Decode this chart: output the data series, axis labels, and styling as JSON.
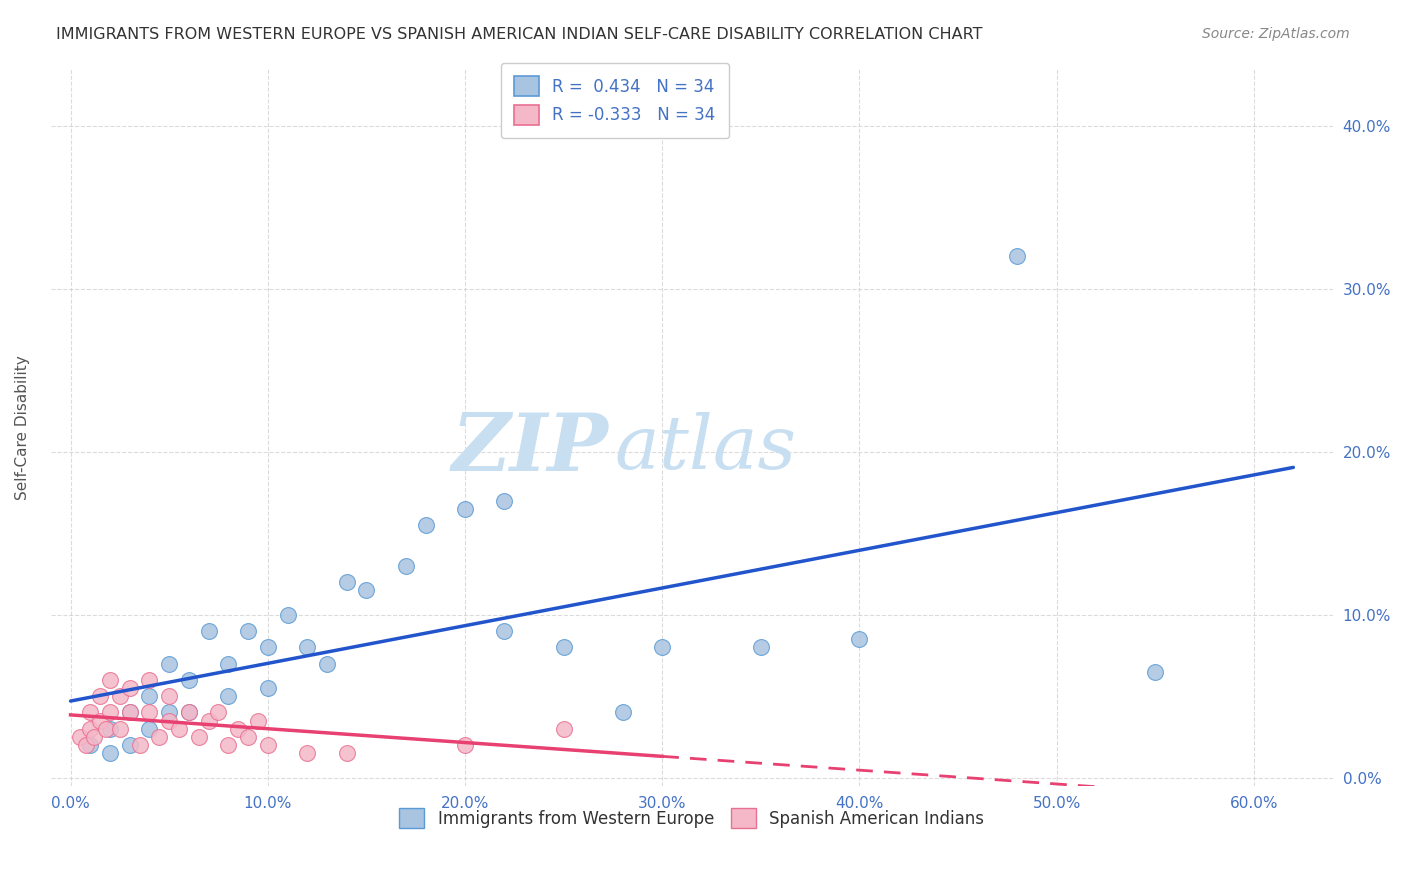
{
  "title": "IMMIGRANTS FROM WESTERN EUROPE VS SPANISH AMERICAN INDIAN SELF-CARE DISABILITY CORRELATION CHART",
  "source": "Source: ZipAtlas.com",
  "xlabel_vals": [
    0.0,
    0.1,
    0.2,
    0.3,
    0.4,
    0.5,
    0.6
  ],
  "ylabel": "Self-Care Disability",
  "ylabel_vals_right": [
    0.0,
    0.1,
    0.2,
    0.3,
    0.4
  ],
  "r_blue": 0.434,
  "n_blue": 34,
  "r_pink": -0.333,
  "n_pink": 34,
  "blue_scatter_x": [
    0.01,
    0.02,
    0.02,
    0.03,
    0.03,
    0.04,
    0.04,
    0.05,
    0.05,
    0.06,
    0.06,
    0.07,
    0.08,
    0.08,
    0.09,
    0.1,
    0.1,
    0.11,
    0.12,
    0.13,
    0.14,
    0.15,
    0.17,
    0.18,
    0.2,
    0.22,
    0.22,
    0.25,
    0.28,
    0.3,
    0.35,
    0.4,
    0.48,
    0.55
  ],
  "blue_scatter_y": [
    0.02,
    0.015,
    0.03,
    0.02,
    0.04,
    0.03,
    0.05,
    0.04,
    0.07,
    0.04,
    0.06,
    0.09,
    0.05,
    0.07,
    0.09,
    0.055,
    0.08,
    0.1,
    0.08,
    0.07,
    0.12,
    0.115,
    0.13,
    0.155,
    0.165,
    0.17,
    0.09,
    0.08,
    0.04,
    0.08,
    0.08,
    0.085,
    0.32,
    0.065
  ],
  "pink_scatter_x": [
    0.005,
    0.008,
    0.01,
    0.01,
    0.012,
    0.015,
    0.015,
    0.018,
    0.02,
    0.02,
    0.025,
    0.025,
    0.03,
    0.03,
    0.035,
    0.04,
    0.04,
    0.045,
    0.05,
    0.05,
    0.055,
    0.06,
    0.065,
    0.07,
    0.075,
    0.08,
    0.085,
    0.09,
    0.095,
    0.1,
    0.12,
    0.14,
    0.2,
    0.25
  ],
  "pink_scatter_y": [
    0.025,
    0.02,
    0.03,
    0.04,
    0.025,
    0.035,
    0.05,
    0.03,
    0.04,
    0.06,
    0.03,
    0.05,
    0.04,
    0.055,
    0.02,
    0.04,
    0.06,
    0.025,
    0.035,
    0.05,
    0.03,
    0.04,
    0.025,
    0.035,
    0.04,
    0.02,
    0.03,
    0.025,
    0.035,
    0.02,
    0.015,
    0.015,
    0.02,
    0.03
  ],
  "blue_color": "#a8c4e0",
  "blue_edge_color": "#5b9bd5",
  "pink_color": "#f4b8c8",
  "pink_edge_color": "#e87090",
  "blue_line_color": "#2255cc",
  "pink_line_color": "#e84070",
  "watermark_zip": "ZIP",
  "watermark_atlas": "atlas",
  "watermark_color_zip": "#c8dff2",
  "watermark_color_atlas": "#c8dff2",
  "background_color": "#ffffff",
  "grid_color": "#cccccc",
  "title_color": "#333333",
  "axis_color": "#4472c4",
  "legend_label_blue": "Immigrants from Western Europe",
  "legend_label_pink": "Spanish American Indians"
}
